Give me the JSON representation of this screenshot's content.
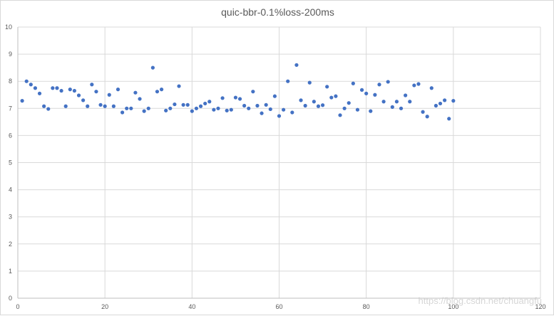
{
  "chart_data": {
    "type": "scatter",
    "title": "quic-bbr-0.1%loss-200ms",
    "xlabel": "",
    "ylabel": "",
    "xlim": [
      0,
      120
    ],
    "ylim": [
      0,
      10
    ],
    "x_ticks": [
      0,
      20,
      40,
      60,
      80,
      100,
      120
    ],
    "y_ticks": [
      0,
      1,
      2,
      3,
      4,
      5,
      6,
      7,
      8,
      9,
      10
    ],
    "grid": true,
    "legend": "none",
    "marker_color": "#4472c4",
    "series": [
      {
        "x": [
          1,
          2,
          3,
          4,
          5,
          6,
          7,
          8,
          9,
          10,
          11,
          12,
          13,
          14,
          15,
          16,
          17,
          18,
          19,
          20,
          21,
          22,
          23,
          24,
          25,
          26,
          27,
          28,
          29,
          30,
          31,
          32,
          33,
          34,
          35,
          36,
          37,
          38,
          39,
          40,
          41,
          42,
          43,
          44,
          45,
          46,
          47,
          48,
          49,
          50,
          51,
          52,
          53,
          54,
          55,
          56,
          57,
          58,
          59,
          60,
          61,
          62,
          63,
          64,
          65,
          66,
          67,
          68,
          69,
          70,
          71,
          72,
          73,
          74,
          75,
          76,
          77,
          78,
          79,
          80,
          81,
          82,
          83,
          84,
          85,
          86,
          87,
          88,
          89,
          90,
          91,
          92,
          93,
          94,
          95,
          96,
          97,
          98,
          99,
          100
        ],
        "values": [
          7.28,
          8.0,
          7.88,
          7.75,
          7.55,
          7.08,
          6.98,
          7.75,
          7.75,
          7.65,
          7.08,
          7.7,
          7.65,
          7.48,
          7.3,
          7.08,
          7.88,
          7.62,
          7.13,
          7.08,
          7.5,
          7.08,
          7.7,
          6.85,
          7.0,
          7.0,
          7.58,
          7.35,
          6.9,
          7.0,
          8.5,
          7.62,
          7.7,
          6.92,
          7.0,
          7.15,
          7.82,
          7.13,
          7.13,
          6.9,
          7.0,
          7.08,
          7.18,
          7.25,
          6.95,
          7.0,
          7.38,
          6.92,
          6.95,
          7.4,
          7.35,
          7.1,
          7.0,
          7.62,
          7.1,
          6.82,
          7.13,
          6.97,
          7.45,
          6.72,
          6.95,
          8.0,
          6.85,
          8.6,
          7.3,
          7.1,
          7.95,
          7.25,
          7.08,
          7.12,
          7.8,
          7.4,
          7.45,
          6.75,
          7.0,
          7.2,
          7.92,
          6.95,
          7.68,
          7.55,
          6.9,
          7.5,
          7.88,
          7.25,
          7.98,
          7.05,
          7.25,
          7.0,
          7.48,
          7.25,
          7.85,
          7.9,
          6.87,
          6.7,
          7.75,
          7.1,
          7.18,
          7.3,
          6.62,
          7.28
        ]
      }
    ]
  },
  "watermark": "https://blog.csdn.net/chuangfu"
}
